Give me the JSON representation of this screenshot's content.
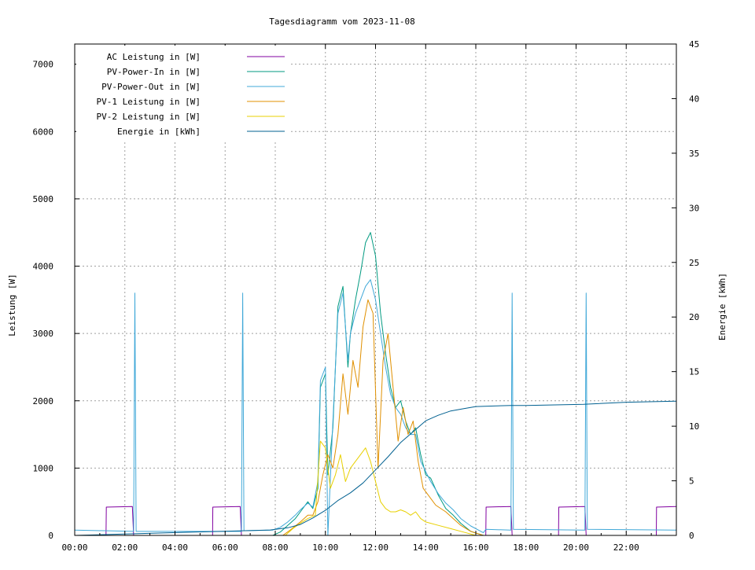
{
  "chart_data": {
    "type": "line",
    "title": "Tagesdiagramm vom 2023-11-08",
    "ylabel": "Leistung [W]",
    "y2label": "Energie [kWh]",
    "xlim_hours": [
      0,
      24
    ],
    "ylim": [
      0,
      7300
    ],
    "y2lim": [
      0,
      45
    ],
    "x_ticks": [
      "00:00",
      "02:00",
      "04:00",
      "06:00",
      "08:00",
      "10:00",
      "12:00",
      "14:00",
      "16:00",
      "18:00",
      "20:00",
      "22:00"
    ],
    "y_ticks": [
      "0",
      "1000",
      "2000",
      "3000",
      "4000",
      "5000",
      "6000",
      "7000"
    ],
    "y2_ticks": [
      "0",
      "5",
      "10",
      "15",
      "20",
      "25",
      "30",
      "35",
      "40",
      "45"
    ],
    "grid": true,
    "legend_position": "top-left",
    "series": [
      {
        "name": "AC Leistung in [W]",
        "axis": "y",
        "color": "#8000a0",
        "points": [
          [
            0,
            0
          ],
          [
            1.25,
            0
          ],
          [
            1.26,
            420
          ],
          [
            2.3,
            430
          ],
          [
            2.35,
            0
          ],
          [
            5.5,
            0
          ],
          [
            5.51,
            420
          ],
          [
            6.6,
            430
          ],
          [
            6.65,
            0
          ],
          [
            16.4,
            0
          ],
          [
            16.41,
            420
          ],
          [
            17.4,
            430
          ],
          [
            17.45,
            0
          ],
          [
            19.3,
            0
          ],
          [
            19.31,
            420
          ],
          [
            20.35,
            430
          ],
          [
            20.4,
            0
          ],
          [
            23.2,
            0
          ],
          [
            23.21,
            420
          ],
          [
            24,
            430
          ]
        ]
      },
      {
        "name": "PV-Power-In in [W]",
        "axis": "y",
        "color": "#009a80",
        "points": [
          [
            0,
            0
          ],
          [
            7.9,
            0
          ],
          [
            8.2,
            50
          ],
          [
            8.5,
            150
          ],
          [
            8.8,
            250
          ],
          [
            9.0,
            350
          ],
          [
            9.3,
            500
          ],
          [
            9.5,
            400
          ],
          [
            9.7,
            700
          ],
          [
            9.8,
            2200
          ],
          [
            10.0,
            2400
          ],
          [
            10.1,
            900
          ],
          [
            10.3,
            1600
          ],
          [
            10.5,
            3400
          ],
          [
            10.7,
            3700
          ],
          [
            10.9,
            2500
          ],
          [
            11.0,
            3000
          ],
          [
            11.2,
            3500
          ],
          [
            11.4,
            3900
          ],
          [
            11.6,
            4350
          ],
          [
            11.8,
            4500
          ],
          [
            12.0,
            4150
          ],
          [
            12.2,
            3300
          ],
          [
            12.4,
            2700
          ],
          [
            12.6,
            2200
          ],
          [
            12.8,
            1900
          ],
          [
            13.0,
            2000
          ],
          [
            13.2,
            1700
          ],
          [
            13.4,
            1500
          ],
          [
            13.6,
            1600
          ],
          [
            13.8,
            1200
          ],
          [
            14.0,
            900
          ],
          [
            14.2,
            850
          ],
          [
            14.5,
            600
          ],
          [
            14.8,
            400
          ],
          [
            15.1,
            300
          ],
          [
            15.4,
            180
          ],
          [
            15.8,
            60
          ],
          [
            16.3,
            0
          ],
          [
            24,
            0
          ]
        ]
      },
      {
        "name": "PV-Power-Out in [W]",
        "axis": "y",
        "color": "#40a8d8",
        "points": [
          [
            0,
            80
          ],
          [
            2.35,
            60
          ],
          [
            2.4,
            3600
          ],
          [
            2.45,
            60
          ],
          [
            6.65,
            60
          ],
          [
            6.7,
            3600
          ],
          [
            6.75,
            70
          ],
          [
            7.9,
            80
          ],
          [
            8.2,
            120
          ],
          [
            8.5,
            200
          ],
          [
            8.8,
            300
          ],
          [
            9.0,
            380
          ],
          [
            9.3,
            480
          ],
          [
            9.5,
            420
          ],
          [
            9.7,
            800
          ],
          [
            9.8,
            2300
          ],
          [
            10.0,
            2500
          ],
          [
            10.1,
            0
          ],
          [
            10.3,
            1700
          ],
          [
            10.5,
            3300
          ],
          [
            10.7,
            3600
          ],
          [
            10.9,
            2600
          ],
          [
            11.0,
            3000
          ],
          [
            11.2,
            3300
          ],
          [
            11.4,
            3500
          ],
          [
            11.6,
            3700
          ],
          [
            11.8,
            3800
          ],
          [
            12.0,
            3500
          ],
          [
            12.2,
            3000
          ],
          [
            12.4,
            2500
          ],
          [
            12.6,
            2100
          ],
          [
            12.8,
            1900
          ],
          [
            13.0,
            1800
          ],
          [
            13.2,
            1600
          ],
          [
            13.4,
            1500
          ],
          [
            13.6,
            1500
          ],
          [
            13.8,
            1100
          ],
          [
            14.0,
            950
          ],
          [
            14.2,
            800
          ],
          [
            14.5,
            620
          ],
          [
            14.8,
            480
          ],
          [
            15.1,
            380
          ],
          [
            15.4,
            250
          ],
          [
            15.8,
            140
          ],
          [
            16.3,
            40
          ],
          [
            16.4,
            90
          ],
          [
            17.4,
            80
          ],
          [
            17.45,
            3600
          ],
          [
            17.5,
            90
          ],
          [
            20.35,
            80
          ],
          [
            20.4,
            3600
          ],
          [
            20.45,
            90
          ],
          [
            24,
            80
          ]
        ]
      },
      {
        "name": "PV-1 Leistung in [W]",
        "axis": "y",
        "color": "#e09000",
        "points": [
          [
            0,
            0
          ],
          [
            8.3,
            0
          ],
          [
            8.6,
            80
          ],
          [
            9.0,
            200
          ],
          [
            9.3,
            300
          ],
          [
            9.5,
            300
          ],
          [
            9.7,
            500
          ],
          [
            9.9,
            900
          ],
          [
            10.1,
            1200
          ],
          [
            10.3,
            1000
          ],
          [
            10.5,
            1500
          ],
          [
            10.7,
            2400
          ],
          [
            10.9,
            1800
          ],
          [
            11.1,
            2600
          ],
          [
            11.3,
            2200
          ],
          [
            11.5,
            3100
          ],
          [
            11.7,
            3500
          ],
          [
            11.9,
            3300
          ],
          [
            12.1,
            1000
          ],
          [
            12.3,
            2600
          ],
          [
            12.5,
            3000
          ],
          [
            12.7,
            2200
          ],
          [
            12.9,
            1400
          ],
          [
            13.1,
            1900
          ],
          [
            13.3,
            1500
          ],
          [
            13.5,
            1700
          ],
          [
            13.7,
            1100
          ],
          [
            13.9,
            700
          ],
          [
            14.1,
            600
          ],
          [
            14.4,
            450
          ],
          [
            14.8,
            350
          ],
          [
            15.1,
            250
          ],
          [
            15.4,
            150
          ],
          [
            15.8,
            60
          ],
          [
            16.3,
            0
          ],
          [
            24,
            0
          ]
        ]
      },
      {
        "name": "PV-2 Leistung in [W]",
        "axis": "y",
        "color": "#e8d000",
        "points": [
          [
            0,
            0
          ],
          [
            8.4,
            0
          ],
          [
            8.7,
            100
          ],
          [
            9.0,
            180
          ],
          [
            9.3,
            250
          ],
          [
            9.6,
            300
          ],
          [
            9.8,
            1400
          ],
          [
            10.0,
            1300
          ],
          [
            10.2,
            700
          ],
          [
            10.4,
            900
          ],
          [
            10.6,
            1200
          ],
          [
            10.8,
            800
          ],
          [
            11.0,
            1000
          ],
          [
            11.2,
            1100
          ],
          [
            11.4,
            1200
          ],
          [
            11.6,
            1300
          ],
          [
            11.8,
            1100
          ],
          [
            12.0,
            800
          ],
          [
            12.2,
            500
          ],
          [
            12.4,
            400
          ],
          [
            12.6,
            350
          ],
          [
            12.8,
            350
          ],
          [
            13.0,
            380
          ],
          [
            13.2,
            350
          ],
          [
            13.4,
            300
          ],
          [
            13.6,
            350
          ],
          [
            13.8,
            250
          ],
          [
            14.0,
            200
          ],
          [
            14.5,
            150
          ],
          [
            15.0,
            100
          ],
          [
            15.5,
            50
          ],
          [
            16.0,
            0
          ],
          [
            24,
            0
          ]
        ]
      },
      {
        "name": "Energie in [kWh]",
        "axis": "y2",
        "color": "#006090",
        "points": [
          [
            0,
            0.0
          ],
          [
            7.8,
            0.5
          ],
          [
            8.5,
            0.7
          ],
          [
            9.0,
            1.0
          ],
          [
            9.5,
            1.6
          ],
          [
            10.0,
            2.3
          ],
          [
            10.5,
            3.2
          ],
          [
            11.0,
            3.9
          ],
          [
            11.5,
            4.8
          ],
          [
            12.0,
            6.0
          ],
          [
            12.5,
            7.2
          ],
          [
            13.0,
            8.5
          ],
          [
            13.5,
            9.5
          ],
          [
            14.0,
            10.5
          ],
          [
            14.5,
            11.0
          ],
          [
            15.0,
            11.4
          ],
          [
            15.5,
            11.6
          ],
          [
            16.0,
            11.8
          ],
          [
            17.4,
            11.9
          ],
          [
            18.0,
            11.9
          ],
          [
            20.3,
            12.0
          ],
          [
            22.0,
            12.2
          ],
          [
            24.0,
            12.3
          ]
        ]
      }
    ]
  }
}
